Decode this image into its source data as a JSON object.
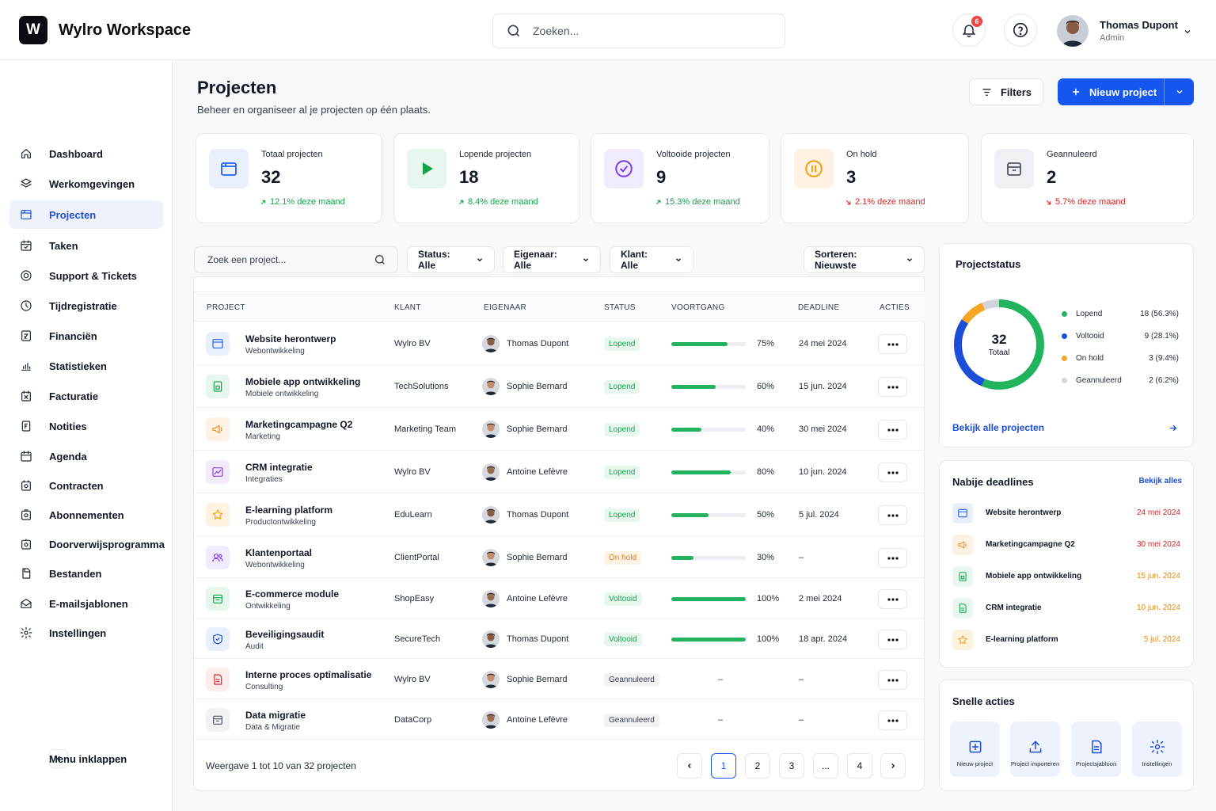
{
  "app": {
    "title": "Wylro Workspace",
    "logo_letter": "W"
  },
  "header": {
    "search_placeholder": "Zoeken...",
    "notifications_count": "6",
    "user": {
      "name": "Thomas Dupont",
      "role": "Admin"
    }
  },
  "sidebar": {
    "items": [
      {
        "label": "Dashboard",
        "icon": "home-icon"
      },
      {
        "label": "Werkomgevingen",
        "icon": "layers-icon"
      },
      {
        "label": "Projecten",
        "icon": "folder-icon",
        "active": true
      },
      {
        "label": "Taken",
        "icon": "calendar-check-icon"
      },
      {
        "label": "Support & Tickets",
        "icon": "target-icon"
      },
      {
        "label": "Tijdregistratie",
        "icon": "clock-icon"
      },
      {
        "label": "Financiën",
        "icon": "finance-icon"
      },
      {
        "label": "Statistieken",
        "icon": "chart-icon"
      },
      {
        "label": "Facturatie",
        "icon": "invoice-icon"
      },
      {
        "label": "Notities",
        "icon": "notes-icon"
      },
      {
        "label": "Agenda",
        "icon": "calendar-icon"
      },
      {
        "label": "Contracten",
        "icon": "contract-icon"
      },
      {
        "label": "Abonnementen",
        "icon": "subscription-icon"
      },
      {
        "label": "Doorverwijsprogramma",
        "icon": "referral-icon"
      },
      {
        "label": "Bestanden",
        "icon": "files-icon"
      },
      {
        "label": "E-mailsjablonen",
        "icon": "mail-icon"
      },
      {
        "label": "Instellingen",
        "icon": "gear-icon"
      }
    ],
    "collapse_label": "Menu inklappen"
  },
  "page": {
    "title": "Projecten",
    "subtitle": "Beheer en organiseer al je projecten op één plaats.",
    "filters_label": "Filters",
    "new_project_label": "Nieuw project"
  },
  "stats": [
    {
      "label": "Totaal projecten",
      "value": "32",
      "trend": "12.1% deze maand",
      "direction": "up",
      "color": "#2563eb"
    },
    {
      "label": "Lopende projecten",
      "value": "18",
      "trend": "8.4% deze maand",
      "direction": "up",
      "color": "#16a34a"
    },
    {
      "label": "Voltooide projecten",
      "value": "9",
      "trend": "15.3% deze maand",
      "direction": "up",
      "color": "#7c3aed"
    },
    {
      "label": "On hold",
      "value": "3",
      "trend": "2.1% deze maand",
      "direction": "down",
      "color": "#f59e0b"
    },
    {
      "label": "Geannuleerd",
      "value": "2",
      "trend": "5.7% deze maand",
      "direction": "down",
      "color": "#4b5563"
    }
  ],
  "toolbar": {
    "search_placeholder": "Zoek een project...",
    "status_filter": "Status: Alle",
    "owner_filter": "Eigenaar: Alle",
    "client_filter": "Klant: Alle",
    "sort": "Sorteren: Nieuwste"
  },
  "table": {
    "columns": [
      "PROJECT",
      "KLANT",
      "EIGENAAR",
      "STATUS",
      "VOORTGANG",
      "DEADLINE",
      "ACTIES"
    ],
    "rows": [
      {
        "name": "Website herontwerp",
        "category": "Webontwikkeling",
        "client": "Wylro BV",
        "owner": "Thomas Dupont",
        "status": "Lopend",
        "progress": 75,
        "progress_label": "75%",
        "deadline": "24 mei 2024",
        "icon": "browser-icon"
      },
      {
        "name": "Mobiele app ontwikkeling",
        "category": "Mobiele ontwikkeling",
        "client": "TechSolutions",
        "owner": "Sophie Bernard",
        "status": "Lopend",
        "progress": 60,
        "progress_label": "60%",
        "deadline": "15 jun. 2024",
        "icon": "mobile-doc-icon"
      },
      {
        "name": "Marketingcampagne Q2",
        "category": "Marketing",
        "client": "Marketing Team",
        "owner": "Sophie Bernard",
        "status": "Lopend",
        "progress": 40,
        "progress_label": "40%",
        "deadline": "30 mei 2024",
        "icon": "megaphone-icon"
      },
      {
        "name": "CRM integratie",
        "category": "Integraties",
        "client": "Wylro BV",
        "owner": "Antoine Lefèvre",
        "status": "Lopend",
        "progress": 80,
        "progress_label": "80%",
        "deadline": "10 jun. 2024",
        "icon": "chart-line-icon"
      },
      {
        "name": "E-learning platform",
        "category": "Productontwikkeling",
        "client": "EduLearn",
        "owner": "Thomas Dupont",
        "status": "Lopend",
        "progress": 50,
        "progress_label": "50%",
        "deadline": "5 jul. 2024",
        "icon": "star-icon"
      },
      {
        "name": "Klantenportaal",
        "category": "Webontwikkeling",
        "client": "ClientPortal",
        "owner": "Sophie Bernard",
        "status": "On hold",
        "progress": 30,
        "progress_label": "30%",
        "deadline": "–",
        "icon": "users-icon"
      },
      {
        "name": "E-commerce module",
        "category": "Ontwikkeling",
        "client": "ShopEasy",
        "owner": "Antoine Lefèvre",
        "status": "Voltooid",
        "progress": 100,
        "progress_label": "100%",
        "deadline": "2 mei 2024",
        "icon": "store-icon"
      },
      {
        "name": "Beveiligingsaudit",
        "category": "Audit",
        "client": "SecureTech",
        "owner": "Thomas Dupont",
        "status": "Voltooid",
        "progress": 100,
        "progress_label": "100%",
        "deadline": "18 apr. 2024",
        "icon": "shield-icon"
      },
      {
        "name": "Interne proces optimalisatie",
        "category": "Consulting",
        "client": "Wylro BV",
        "owner": "Sophie Bernard",
        "status": "Geannuleerd",
        "progress": null,
        "progress_label": "–",
        "deadline": "–",
        "icon": "document-icon"
      },
      {
        "name": "Data migratie",
        "category": "Data & Migratie",
        "client": "DataCorp",
        "owner": "Antoine Lefèvre",
        "status": "Geannuleerd",
        "progress": null,
        "progress_label": "–",
        "deadline": "–",
        "icon": "archive-icon"
      }
    ],
    "showing": "Weergave 1 tot 10 van 32 projecten",
    "pages": [
      "1",
      "2",
      "3",
      "...",
      "4"
    ]
  },
  "project_status": {
    "title": "Projectstatus",
    "total": "32",
    "total_label": "Totaal",
    "link": "Bekijk alle projecten",
    "legend": [
      {
        "label": "Lopend",
        "value": "18 (56.3%)",
        "count": 18,
        "color": "#22b35e"
      },
      {
        "label": "Voltooid",
        "value": "9 (28.1%)",
        "count": 9,
        "color": "#1d4ed8"
      },
      {
        "label": "On hold",
        "value": "3 (9.4%)",
        "count": 3,
        "color": "#f5a623"
      },
      {
        "label": "Geannuleerd",
        "value": "2 (6.2%)",
        "count": 2,
        "color": "#d1d5db"
      }
    ]
  },
  "deadlines": {
    "title": "Nabije deadlines",
    "link": "Bekijk alles",
    "items": [
      {
        "name": "Website herontwerp",
        "date": "24 mei 2024",
        "color": "#dc2626",
        "icon": "browser-icon"
      },
      {
        "name": "Marketingcampagne Q2",
        "date": "30 mei 2024",
        "color": "#dc2626",
        "icon": "megaphone-icon"
      },
      {
        "name": "Mobiele app ontwikkeling",
        "date": "15 jun. 2024",
        "color": "#ea8a0c",
        "icon": "mobile-doc-icon"
      },
      {
        "name": "CRM integratie",
        "date": "10 jun. 2024",
        "color": "#ea8a0c",
        "icon": "document-icon"
      },
      {
        "name": "E-learning platform",
        "date": "5 jul. 2024",
        "color": "#ea8a0c",
        "icon": "star-icon"
      }
    ]
  },
  "quick_actions": {
    "title": "Snelle acties",
    "items": [
      {
        "label": "Nieuw project",
        "icon": "plus-square-icon"
      },
      {
        "label": "Project importeren",
        "icon": "upload-icon"
      },
      {
        "label": "Projectsjabloon",
        "icon": "template-icon"
      },
      {
        "label": "Instellingen",
        "icon": "gear-icon"
      }
    ]
  }
}
